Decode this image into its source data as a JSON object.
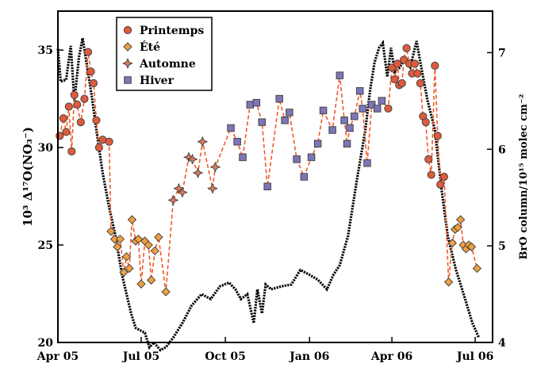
{
  "chart_data": {
    "type": "scatter",
    "xlabel": "",
    "ylabel_left": "10³ Δ¹⁷O(NO₃⁻)",
    "ylabel_right": "BrO column/10¹⁵ molec cm⁻²",
    "x_range": [
      "2005-04-01",
      "2006-07-20"
    ],
    "ylim_left": [
      20,
      37
    ],
    "ylim_right": [
      4,
      7.43
    ],
    "x_ticks": [
      {
        "date": "2005-04-01",
        "label": "Apr 05"
      },
      {
        "date": "2005-07-01",
        "label": "Jul 05"
      },
      {
        "date": "2005-10-01",
        "label": "Oct 05"
      },
      {
        "date": "2006-01-01",
        "label": "Jan 06"
      },
      {
        "date": "2006-04-01",
        "label": "Apr 06"
      },
      {
        "date": "2006-07-01",
        "label": "Jul 06"
      }
    ],
    "y_ticks_left": [
      20,
      25,
      30,
      35
    ],
    "y_ticks_right": [
      4,
      5,
      6,
      7
    ],
    "legend": {
      "placement": "top-left",
      "entries": [
        {
          "name": "Printemps",
          "marker": "circle",
          "color": "#e05a3c"
        },
        {
          "name": "Été",
          "marker": "diamond",
          "color": "#f0a040"
        },
        {
          "name": "Automne",
          "marker": "star4",
          "color": "#e07a5a"
        },
        {
          "name": "Hiver",
          "marker": "square",
          "color": "#7d76b8"
        }
      ]
    },
    "colors": {
      "dashed_line": "#f05a28",
      "bro_line": "#000000",
      "marker_edge": "#444444"
    },
    "series": [
      {
        "name": "Printemps",
        "marker": "circle",
        "points": [
          [
            "2005-04-03",
            30.6
          ],
          [
            "2005-04-07",
            31.5
          ],
          [
            "2005-04-10",
            30.8
          ],
          [
            "2005-04-13",
            32.1
          ],
          [
            "2005-04-16",
            29.8
          ],
          [
            "2005-04-19",
            32.7
          ],
          [
            "2005-04-22",
            32.2
          ],
          [
            "2005-04-26",
            31.3
          ],
          [
            "2005-04-30",
            32.5
          ],
          [
            "2005-05-04",
            34.9
          ],
          [
            "2005-05-07",
            33.9
          ],
          [
            "2005-05-10",
            33.3
          ],
          [
            "2005-05-13",
            31.4
          ],
          [
            "2005-05-16",
            30.0
          ],
          [
            "2005-05-20",
            30.4
          ],
          [
            "2005-05-27",
            30.3
          ],
          [
            "2006-03-28",
            32.0
          ],
          [
            "2006-04-01",
            34.1
          ],
          [
            "2006-04-04",
            33.5
          ],
          [
            "2006-04-07",
            34.3
          ],
          [
            "2006-04-09",
            33.2
          ],
          [
            "2006-04-12",
            33.3
          ],
          [
            "2006-04-14",
            34.5
          ],
          [
            "2006-04-17",
            35.1
          ],
          [
            "2006-04-20",
            34.3
          ],
          [
            "2006-04-23",
            33.8
          ],
          [
            "2006-04-26",
            34.3
          ],
          [
            "2006-04-29",
            33.8
          ],
          [
            "2006-05-02",
            33.3
          ],
          [
            "2006-05-05",
            31.6
          ],
          [
            "2006-05-08",
            31.3
          ],
          [
            "2006-05-11",
            29.4
          ],
          [
            "2006-05-14",
            28.6
          ],
          [
            "2006-05-18",
            34.2
          ],
          [
            "2006-05-21",
            30.6
          ],
          [
            "2006-05-24",
            28.1
          ],
          [
            "2006-05-28",
            28.5
          ]
        ]
      },
      {
        "name": "Été",
        "marker": "diamond",
        "points": [
          [
            "2005-05-29",
            25.7
          ],
          [
            "2005-06-02",
            25.3
          ],
          [
            "2005-06-05",
            24.9
          ],
          [
            "2005-06-08",
            25.3
          ],
          [
            "2005-06-12",
            23.6
          ],
          [
            "2005-06-15",
            24.4
          ],
          [
            "2005-06-18",
            23.8
          ],
          [
            "2005-06-21",
            26.3
          ],
          [
            "2005-06-25",
            25.2
          ],
          [
            "2005-06-28",
            25.3
          ],
          [
            "2005-07-01",
            23.0
          ],
          [
            "2005-07-05",
            25.2
          ],
          [
            "2005-07-09",
            25.0
          ],
          [
            "2005-07-12",
            23.2
          ],
          [
            "2005-07-16",
            24.7
          ],
          [
            "2005-07-20",
            25.4
          ],
          [
            "2005-07-28",
            22.6
          ],
          [
            "2006-06-02",
            23.1
          ],
          [
            "2006-06-06",
            25.1
          ],
          [
            "2006-06-09",
            25.8
          ],
          [
            "2006-06-12",
            25.9
          ],
          [
            "2006-06-15",
            26.3
          ],
          [
            "2006-06-18",
            25.0
          ],
          [
            "2006-06-21",
            24.8
          ],
          [
            "2006-06-24",
            25.0
          ],
          [
            "2006-06-27",
            24.9
          ],
          [
            "2006-07-03",
            23.8
          ]
        ]
      },
      {
        "name": "Automne",
        "marker": "star4",
        "points": [
          [
            "2005-08-05",
            27.3
          ],
          [
            "2005-08-11",
            27.9
          ],
          [
            "2005-08-15",
            27.7
          ],
          [
            "2005-08-22",
            29.5
          ],
          [
            "2005-08-26",
            29.4
          ],
          [
            "2005-09-01",
            28.7
          ],
          [
            "2005-09-06",
            30.3
          ],
          [
            "2005-09-17",
            27.9
          ],
          [
            "2005-09-20",
            29.0
          ]
        ]
      },
      {
        "name": "Hiver",
        "marker": "square",
        "points": [
          [
            "2005-10-07",
            31.0
          ],
          [
            "2005-10-14",
            30.3
          ],
          [
            "2005-10-20",
            29.5
          ],
          [
            "2005-10-28",
            32.2
          ],
          [
            "2005-11-04",
            32.3
          ],
          [
            "2005-11-10",
            31.3
          ],
          [
            "2005-11-16",
            28.0
          ],
          [
            "2005-11-29",
            32.5
          ],
          [
            "2005-12-05",
            31.4
          ],
          [
            "2005-12-10",
            31.8
          ],
          [
            "2005-12-18",
            29.4
          ],
          [
            "2005-12-26",
            28.5
          ],
          [
            "2006-01-03",
            29.5
          ],
          [
            "2006-01-10",
            30.2
          ],
          [
            "2006-01-16",
            31.9
          ],
          [
            "2006-01-26",
            30.9
          ],
          [
            "2006-02-03",
            33.7
          ],
          [
            "2006-02-08",
            31.4
          ],
          [
            "2006-02-11",
            30.2
          ],
          [
            "2006-02-14",
            31.0
          ],
          [
            "2006-02-19",
            31.6
          ],
          [
            "2006-02-25",
            32.9
          ],
          [
            "2006-02-28",
            32.0
          ],
          [
            "2006-03-05",
            29.2
          ],
          [
            "2006-03-10",
            32.2
          ],
          [
            "2006-03-16",
            32.0
          ],
          [
            "2006-03-21",
            32.4
          ]
        ]
      }
    ],
    "bro_column": [
      [
        "2005-04-01",
        7.04
      ],
      [
        "2005-04-04",
        6.7
      ],
      [
        "2005-04-10",
        6.72
      ],
      [
        "2005-04-15",
        7.07
      ],
      [
        "2005-04-19",
        6.5
      ],
      [
        "2005-04-24",
        6.95
      ],
      [
        "2005-04-28",
        7.15
      ],
      [
        "2005-05-03",
        6.85
      ],
      [
        "2005-05-08",
        6.55
      ],
      [
        "2005-05-13",
        6.2
      ],
      [
        "2005-05-20",
        5.75
      ],
      [
        "2005-05-27",
        5.4
      ],
      [
        "2005-06-03",
        5.1
      ],
      [
        "2005-06-10",
        4.7
      ],
      [
        "2005-06-20",
        4.3
      ],
      [
        "2005-06-25",
        4.15
      ],
      [
        "2005-07-05",
        4.1
      ],
      [
        "2005-07-10",
        3.95
      ],
      [
        "2005-07-15",
        4.0
      ],
      [
        "2005-07-22",
        3.92
      ],
      [
        "2005-07-28",
        3.95
      ],
      [
        "2005-08-05",
        4.05
      ],
      [
        "2005-08-15",
        4.2
      ],
      [
        "2005-08-25",
        4.38
      ],
      [
        "2005-09-05",
        4.5
      ],
      [
        "2005-09-15",
        4.45
      ],
      [
        "2005-09-25",
        4.58
      ],
      [
        "2005-10-05",
        4.62
      ],
      [
        "2005-10-12",
        4.55
      ],
      [
        "2005-10-18",
        4.45
      ],
      [
        "2005-10-25",
        4.5
      ],
      [
        "2005-11-01",
        4.2
      ],
      [
        "2005-11-05",
        4.55
      ],
      [
        "2005-11-10",
        4.3
      ],
      [
        "2005-11-14",
        4.6
      ],
      [
        "2005-11-20",
        4.55
      ],
      [
        "2005-12-01",
        4.58
      ],
      [
        "2005-12-12",
        4.6
      ],
      [
        "2005-12-22",
        4.75
      ],
      [
        "2006-01-01",
        4.7
      ],
      [
        "2006-01-10",
        4.65
      ],
      [
        "2006-01-20",
        4.55
      ],
      [
        "2006-01-27",
        4.7
      ],
      [
        "2006-02-03",
        4.8
      ],
      [
        "2006-02-12",
        5.1
      ],
      [
        "2006-02-22",
        5.7
      ],
      [
        "2006-03-03",
        6.2
      ],
      [
        "2006-03-08",
        6.6
      ],
      [
        "2006-03-13",
        6.9
      ],
      [
        "2006-03-18",
        7.05
      ],
      [
        "2006-03-22",
        7.1
      ],
      [
        "2006-03-27",
        6.75
      ],
      [
        "2006-03-31",
        7.05
      ],
      [
        "2006-04-04",
        6.8
      ],
      [
        "2006-04-10",
        6.85
      ],
      [
        "2006-04-15",
        6.95
      ],
      [
        "2006-04-21",
        6.85
      ],
      [
        "2006-04-28",
        7.12
      ],
      [
        "2006-05-02",
        6.9
      ],
      [
        "2006-05-10",
        6.5
      ],
      [
        "2006-05-18",
        6.2
      ],
      [
        "2006-05-25",
        5.6
      ],
      [
        "2006-06-01",
        5.1
      ],
      [
        "2006-06-10",
        4.75
      ],
      [
        "2006-06-20",
        4.45
      ],
      [
        "2006-06-28",
        4.2
      ],
      [
        "2006-07-05",
        4.05
      ]
    ]
  }
}
